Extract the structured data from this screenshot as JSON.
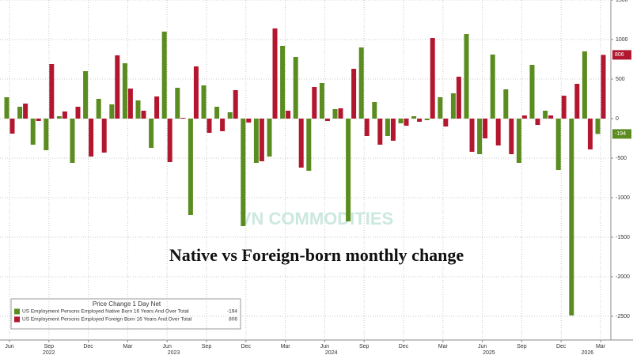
{
  "chart_data": {
    "type": "bar",
    "title": "Native vs Foreign-born monthly change",
    "watermark": "VN COMMODITIES",
    "legend_title": "Price Change 1 Day Net",
    "categories": [
      "Jun",
      null,
      null,
      "Sep",
      null,
      null,
      "Dec",
      null,
      null,
      "Mar",
      null,
      null,
      "Jun",
      null,
      null,
      "Sep",
      null,
      null,
      "Dec",
      null,
      null,
      "Mar",
      null,
      null,
      "Jun",
      null,
      null,
      "Sep",
      null,
      null,
      "Dec",
      null,
      null,
      "Mar",
      null,
      null,
      "Jun",
      null,
      null,
      "Sep",
      null,
      null,
      "Dec",
      null,
      null,
      "Mar"
    ],
    "years": [
      "2022",
      "2023",
      "2024",
      "2025",
      "2026"
    ],
    "series": [
      {
        "name": "US Employment Persons Employed Native Born 16 Years And Over Total",
        "color": "#5b8c1f",
        "values": [
          270,
          150,
          -330,
          -400,
          30,
          -560,
          600,
          250,
          180,
          700,
          230,
          -370,
          1100,
          390,
          -1220,
          420,
          150,
          80,
          -1360,
          -560,
          -480,
          920,
          780,
          -660,
          450,
          120,
          -1300,
          900,
          210,
          -220,
          -60,
          30,
          -20,
          270,
          320,
          1070,
          -450,
          810,
          370,
          -560,
          680,
          100,
          -650,
          -2490,
          850,
          -194
        ]
      },
      {
        "name": "US Employment Persons Employed Foreign Born 16 Years And Over Total",
        "color": "#b3172f",
        "values": [
          -190,
          190,
          -30,
          690,
          90,
          150,
          -480,
          -430,
          800,
          380,
          100,
          280,
          -550,
          10,
          660,
          -180,
          -160,
          360,
          -50,
          -540,
          1140,
          100,
          -620,
          400,
          -30,
          130,
          630,
          -220,
          -330,
          -280,
          -90,
          -40,
          1020,
          -100,
          530,
          -420,
          -250,
          -340,
          -450,
          40,
          -80,
          40,
          290,
          440,
          -390,
          806
        ]
      }
    ],
    "ylim": [
      -2800,
      1500
    ],
    "yticks": [
      1500,
      1000,
      500,
      0,
      -500,
      -1000,
      -1500,
      -2000,
      -2500
    ],
    "grid": true
  }
}
